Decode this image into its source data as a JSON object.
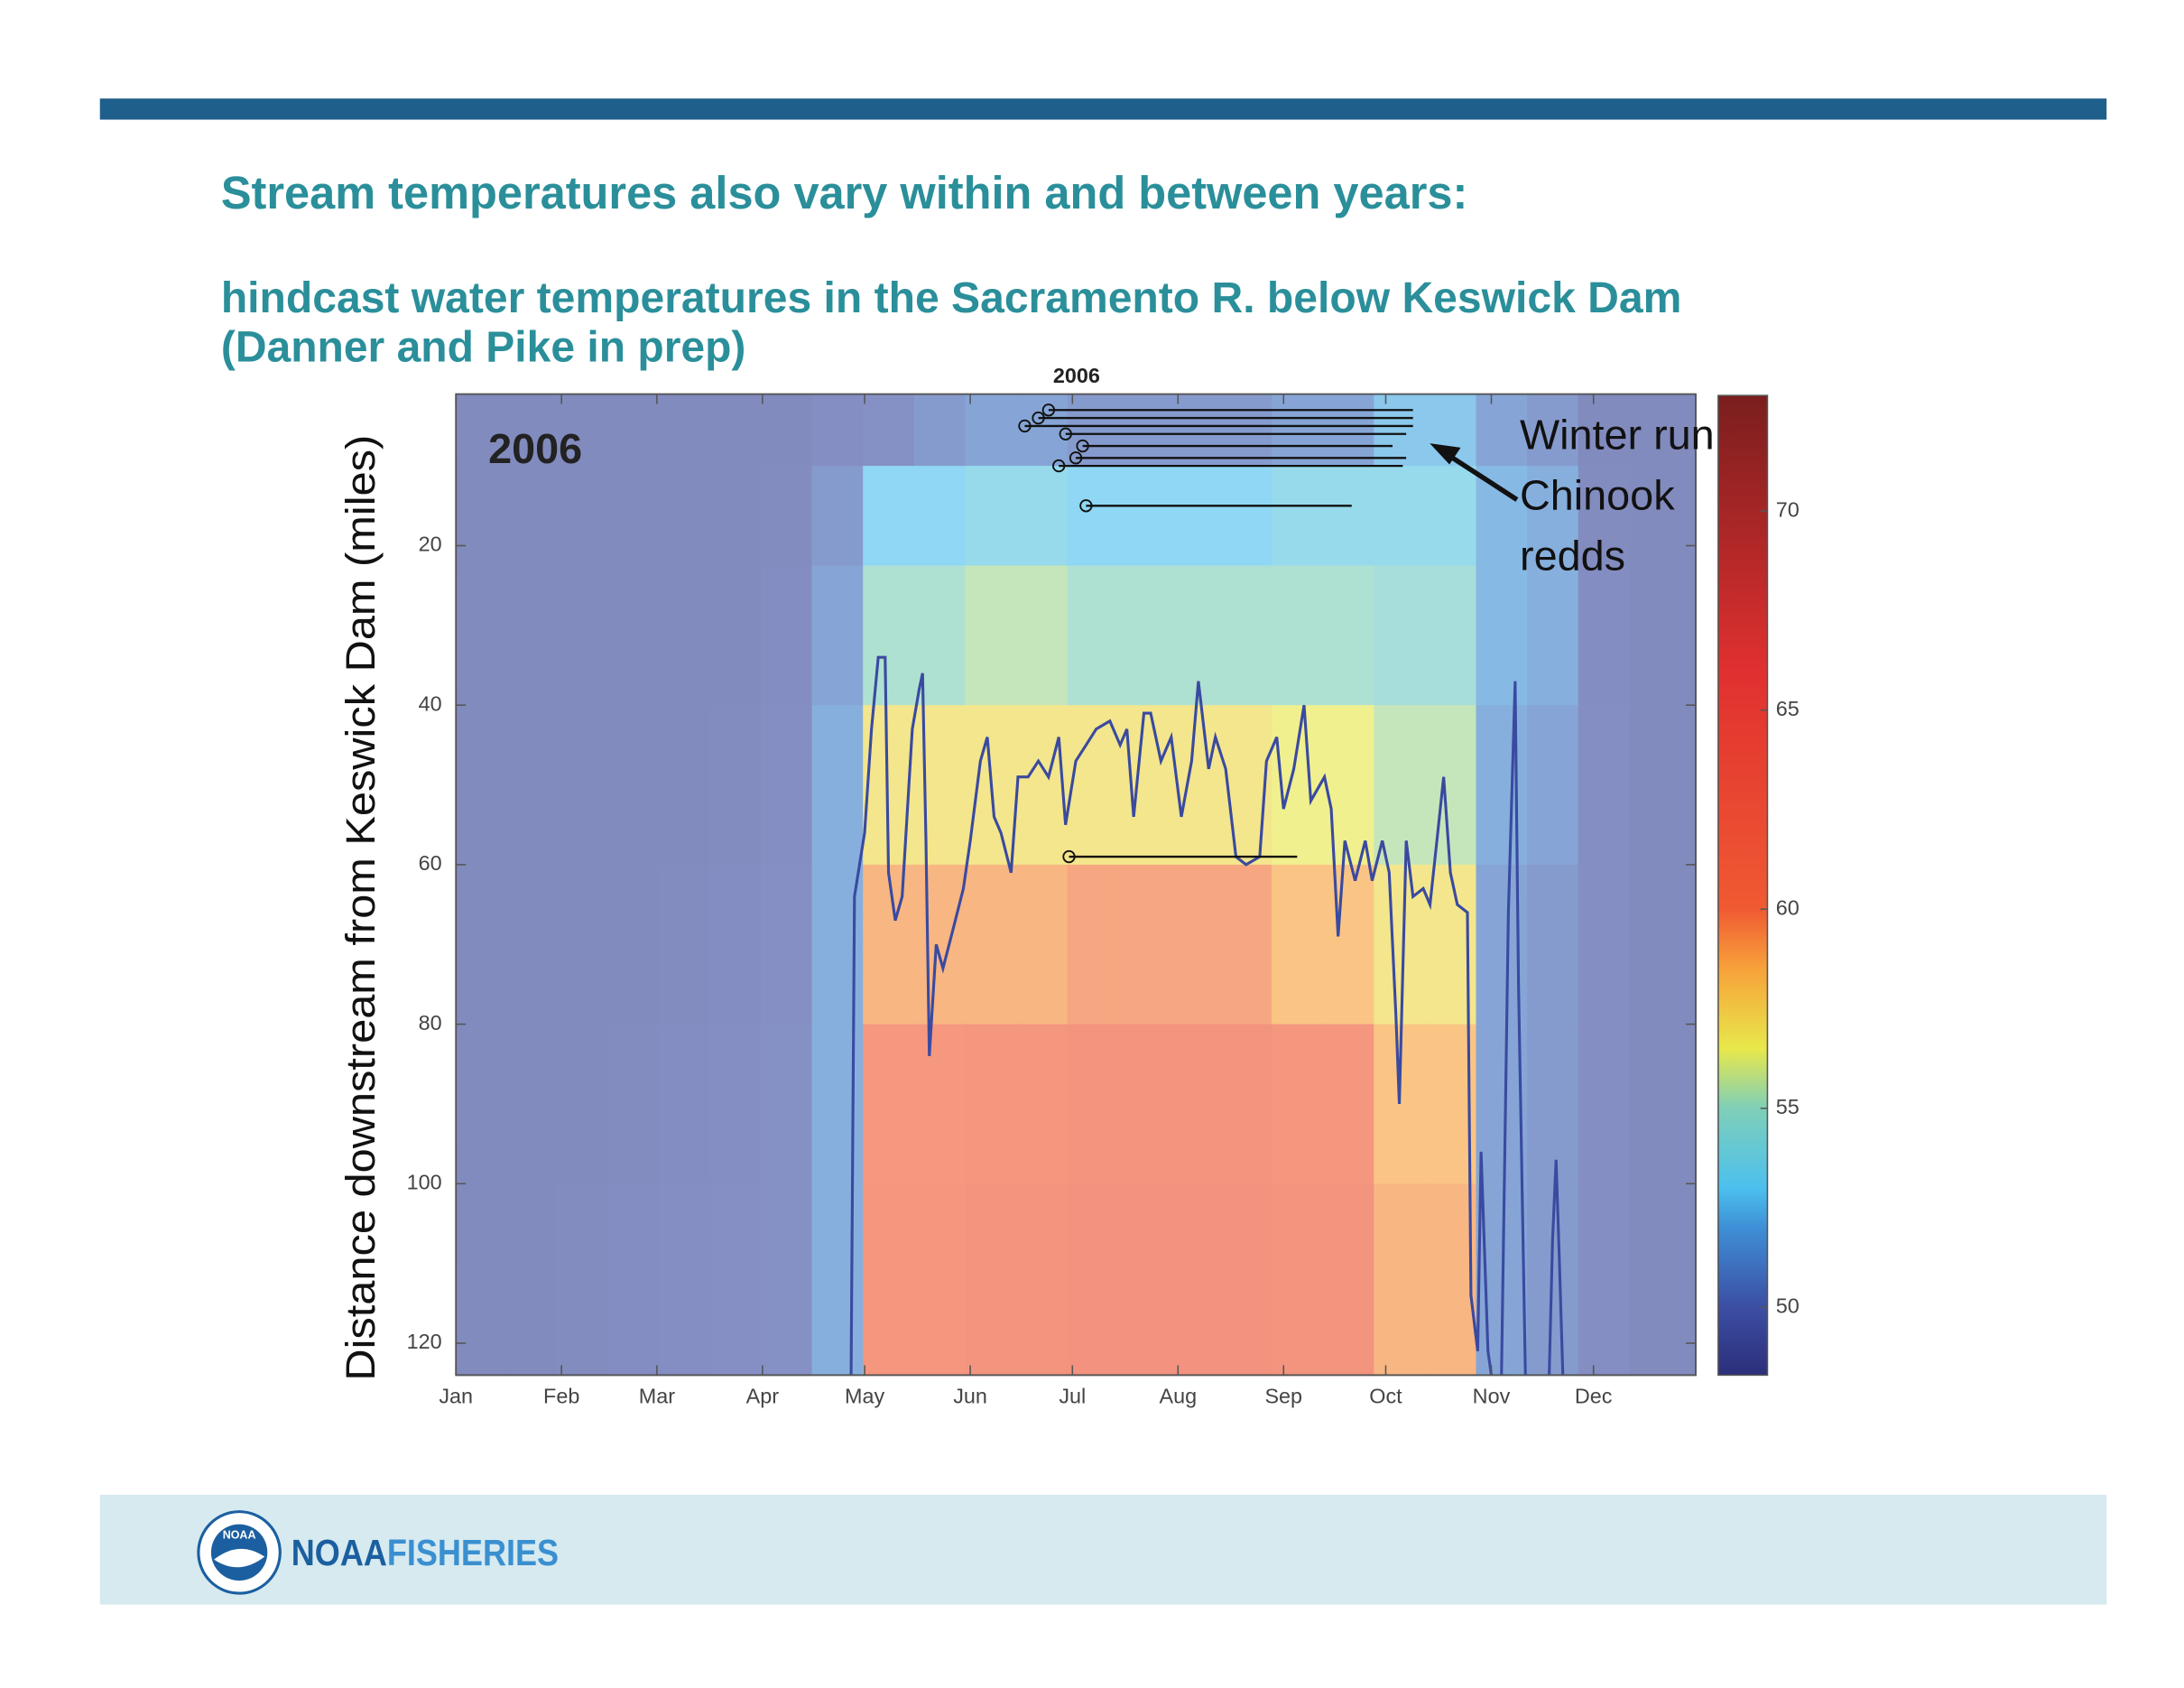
{
  "header": {
    "title": "Stream temperatures also vary within and between years:",
    "subtitle_lines": [
      "hindcast water temperatures in the Sacramento R. below Keswick Dam",
      "(Danner and Pike in prep)"
    ]
  },
  "footer": {
    "logo_text": "NOAA",
    "brand_bold": "NOAA",
    "brand": "FISHERIES"
  },
  "chart_data": {
    "type": "heatmap",
    "ylabel": "Distance downstream from Keswick Dam (miles)",
    "year_label": "2006",
    "top_label": "2006",
    "annotation_lines": [
      "Winter run",
      "Chinook",
      "redds"
    ],
    "xlim": [
      1,
      365
    ],
    "xticks": [
      {
        "value": 1,
        "label": "Jan"
      },
      {
        "value": 32,
        "label": "Feb"
      },
      {
        "value": 60,
        "label": "Mar"
      },
      {
        "value": 91,
        "label": "Apr"
      },
      {
        "value": 121,
        "label": "May"
      },
      {
        "value": 152,
        "label": "Jun"
      },
      {
        "value": 182,
        "label": "Jul"
      },
      {
        "value": 213,
        "label": "Aug"
      },
      {
        "value": 244,
        "label": "Sep"
      },
      {
        "value": 274,
        "label": "Oct"
      },
      {
        "value": 305,
        "label": "Nov"
      },
      {
        "value": 335,
        "label": "Dec"
      }
    ],
    "ylim": [
      1,
      124
    ],
    "y_reversed": true,
    "yticks": [
      20,
      40,
      60,
      80,
      100,
      120
    ],
    "clim": [
      48.3,
      72.9
    ],
    "cticks": [
      50,
      55,
      60,
      65,
      70
    ],
    "colormap": [
      [
        48.3,
        "#2c2f7a"
      ],
      [
        50,
        "#3c4ea3"
      ],
      [
        52,
        "#3e8fd6"
      ],
      [
        53,
        "#4cc0ee"
      ],
      [
        55,
        "#7fcfb8"
      ],
      [
        56.5,
        "#e8e84a"
      ],
      [
        58.5,
        "#f7a23a"
      ],
      [
        60,
        "#f05a32"
      ],
      [
        66,
        "#e03030"
      ],
      [
        72.9,
        "#7a1e1e"
      ]
    ],
    "heatmap": {
      "x": [
        8,
        23,
        38,
        53,
        68,
        83,
        98,
        113,
        128,
        143,
        158,
        173,
        188,
        203,
        218,
        233,
        248,
        263,
        278,
        293,
        308,
        323,
        338,
        353
      ],
      "y": [
        5,
        15,
        30,
        50,
        70,
        90,
        110
      ],
      "z": [
        [
          49.5,
          49.5,
          49.5,
          49.5,
          49.5,
          49.5,
          49.5,
          49.8,
          50,
          50.5,
          51,
          51,
          50.5,
          50.5,
          50.5,
          50.5,
          51,
          51,
          52.5,
          52.5,
          51,
          50.5,
          49.5,
          49.5
        ],
        [
          49.5,
          49.5,
          49.5,
          49.5,
          49.5,
          49.5,
          49.6,
          50.5,
          53,
          53,
          53.5,
          53.5,
          53,
          53,
          53,
          53,
          53.5,
          53.5,
          53.5,
          53.5,
          52,
          51.5,
          49.6,
          49.5
        ],
        [
          49.5,
          49.5,
          49.5,
          49.5,
          49.5,
          49.5,
          49.7,
          51,
          55,
          55,
          55.5,
          55.5,
          55,
          55,
          55,
          55,
          55,
          55,
          54.5,
          54.5,
          52,
          51.5,
          49.7,
          49.5
        ],
        [
          49.5,
          49.5,
          49.5,
          49.5,
          49.5,
          49.6,
          49.8,
          51.5,
          57,
          57,
          57,
          57,
          57,
          57,
          57,
          57,
          56.5,
          56.5,
          55.5,
          55.5,
          51.5,
          51,
          49.8,
          49.5
        ],
        [
          49.5,
          49.5,
          49.5,
          49.5,
          49.6,
          49.7,
          49.9,
          51.5,
          59,
          59,
          59,
          59,
          59.5,
          59.5,
          59.5,
          59.5,
          58.5,
          58.5,
          57,
          57,
          51,
          50.5,
          49.8,
          49.5
        ],
        [
          49.5,
          49.5,
          49.5,
          49.6,
          49.7,
          49.8,
          50,
          51.5,
          60,
          60,
          60.5,
          60.5,
          61,
          61,
          61,
          61,
          60.5,
          60.5,
          58.5,
          58.5,
          51,
          50.5,
          49.8,
          49.5
        ],
        [
          49.5,
          49.5,
          49.6,
          49.7,
          49.8,
          49.9,
          50,
          51.5,
          60.5,
          60.5,
          61,
          61,
          61.5,
          61.5,
          61.5,
          61.5,
          61,
          61,
          59,
          59,
          51,
          50.5,
          49.8,
          49.5
        ]
      ]
    },
    "line": {
      "color": "#3a4aa0",
      "x": [
        117,
        118,
        121,
        123,
        125,
        127,
        128,
        130,
        132,
        135,
        137,
        138,
        139,
        140,
        142,
        144,
        147,
        150,
        152,
        155,
        157,
        159,
        161,
        164,
        166,
        169,
        172,
        175,
        178,
        180,
        183,
        186,
        189,
        193,
        196,
        198,
        200,
        203,
        205,
        208,
        211,
        214,
        217,
        219,
        222,
        224,
        227,
        230,
        233,
        237,
        239,
        242,
        244,
        247,
        250,
        252,
        256,
        258,
        260,
        262,
        265,
        268,
        270,
        273,
        275,
        277,
        278,
        280,
        282,
        285,
        287,
        289,
        291,
        293,
        295,
        298,
        299,
        301,
        302,
        304,
        305,
        null,
        308,
        310,
        312,
        313,
        315,
        null,
        322,
        323,
        324,
        325,
        326
      ],
      "y": [
        124,
        64,
        56,
        43,
        34,
        34,
        61,
        67,
        64,
        43,
        38,
        36,
        57,
        84,
        70,
        73,
        68,
        63,
        57,
        47,
        44,
        54,
        56,
        61,
        49,
        49,
        47,
        49,
        44,
        55,
        47,
        45,
        43,
        42,
        45,
        43,
        54,
        41,
        41,
        47,
        44,
        54,
        47,
        37,
        48,
        44,
        48,
        59,
        60,
        59,
        47,
        44,
        53,
        48,
        40,
        52,
        49,
        53,
        69,
        57,
        62,
        57,
        62,
        57,
        61,
        79,
        90,
        57,
        64,
        63,
        65,
        57,
        49,
        61,
        65,
        66,
        114,
        121,
        96,
        121,
        124,
        null,
        124,
        66,
        37,
        75,
        124,
        null,
        124,
        107,
        97,
        110,
        124
      ]
    },
    "redds": [
      {
        "start": 175,
        "end": 282,
        "distance": 3
      },
      {
        "start": 172,
        "end": 282,
        "distance": 4
      },
      {
        "start": 168,
        "end": 282,
        "distance": 5
      },
      {
        "start": 180,
        "end": 280,
        "distance": 6
      },
      {
        "start": 185,
        "end": 276,
        "distance": 7.5
      },
      {
        "start": 183,
        "end": 280,
        "distance": 9
      },
      {
        "start": 178,
        "end": 279,
        "distance": 10
      },
      {
        "start": 186,
        "end": 264,
        "distance": 15
      },
      {
        "start": 181,
        "end": 248,
        "distance": 59
      }
    ]
  }
}
